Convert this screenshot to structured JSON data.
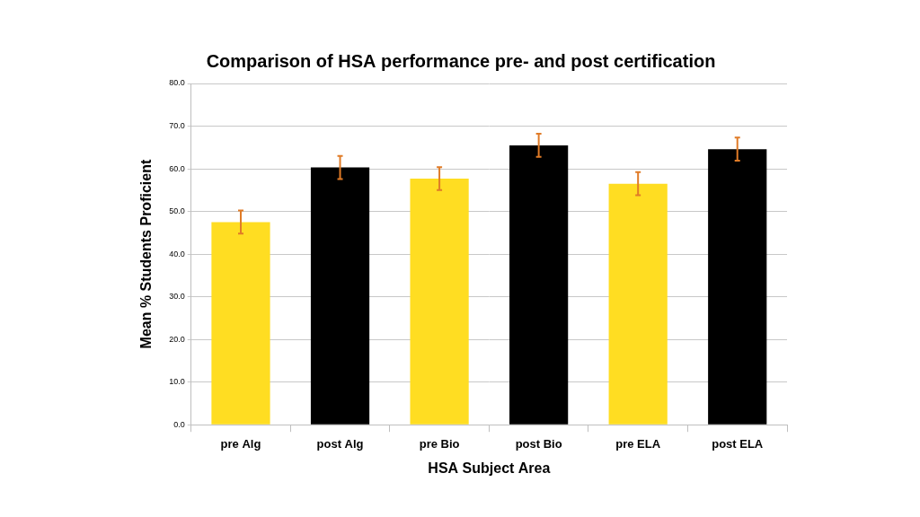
{
  "chart_data": {
    "type": "bar",
    "title": "Comparison of HSA performance pre- and post certification",
    "x_label": "HSA Subject Area",
    "y_label": "Mean % Students Proficient",
    "categories": [
      "pre Alg",
      "post Alg",
      "pre Bio",
      "post Bio",
      "pre ELA",
      "post ELA"
    ],
    "values": [
      47.5,
      60.3,
      57.7,
      65.5,
      56.5,
      64.6
    ],
    "errors": [
      2.7,
      2.7,
      2.7,
      2.7,
      2.7,
      2.7
    ],
    "error_color": "#e07b27",
    "colors": [
      "#ffdd22",
      "#000000",
      "#ffdd22",
      "#000000",
      "#ffdd22",
      "#000000"
    ],
    "ylim": [
      0,
      80
    ],
    "yticks": [
      {
        "value": 0,
        "label": "0.0"
      },
      {
        "value": 10,
        "label": "10.0"
      },
      {
        "value": 20,
        "label": "20.0"
      },
      {
        "value": 30,
        "label": "30.0"
      },
      {
        "value": 40,
        "label": "40.0"
      },
      {
        "value": 50,
        "label": "50.0"
      },
      {
        "value": 60,
        "label": "60.0"
      },
      {
        "value": 70,
        "label": "70.0"
      },
      {
        "value": 80,
        "label": "80.0"
      }
    ],
    "grid": true
  }
}
